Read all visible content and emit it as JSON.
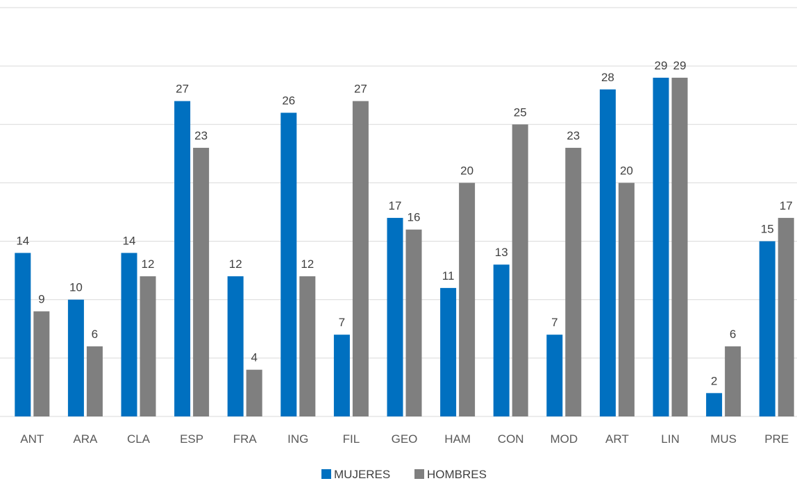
{
  "chart_data": {
    "type": "bar",
    "title": "",
    "xlabel": "",
    "ylabel": "",
    "ylim": [
      0,
      35
    ],
    "grid": true,
    "legend_position": "bottom",
    "categories": [
      "ANT",
      "ARA",
      "CLA",
      "ESP",
      "FRA",
      "ING",
      "FIL",
      "GEO",
      "HAM",
      "CON",
      "MOD",
      "ART",
      "LIN",
      "MUS",
      "PRE"
    ],
    "series": [
      {
        "name": "MUJERES",
        "color": "#0070C0",
        "values": [
          14,
          10,
          14,
          27,
          12,
          26,
          7,
          17,
          11,
          13,
          7,
          28,
          29,
          2,
          15
        ]
      },
      {
        "name": "HOMBRES",
        "color": "#7F7F7F",
        "values": [
          9,
          6,
          12,
          23,
          4,
          12,
          27,
          16,
          20,
          25,
          23,
          20,
          29,
          6,
          17
        ]
      }
    ]
  }
}
